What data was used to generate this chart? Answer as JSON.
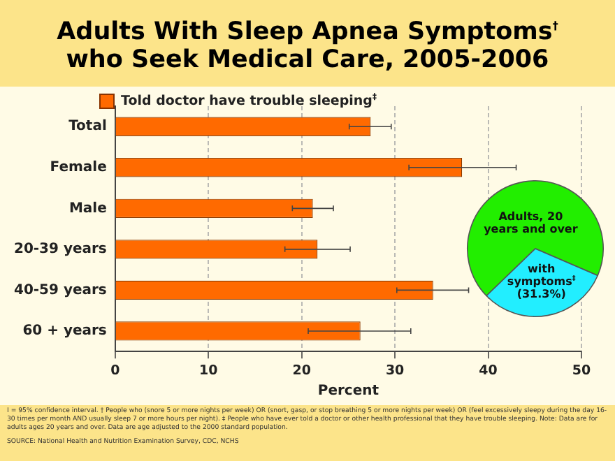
{
  "chart_data": [
    {
      "type": "bar",
      "orientation": "horizontal",
      "title": "Adults With Sleep Apnea Symptoms$^{†}$ who Seek Medical Care, 2005-2006",
      "xlabel": "Percent",
      "categories": [
        "Total",
        "Female",
        "Male",
        "20-39 years",
        "40-59 years",
        "60 + years"
      ],
      "series": [
        {
          "name": "Told doctor have trouble sleeping$^{‡}$",
          "color": "#ff6a00",
          "values": [
            27.4,
            37.2,
            21.2,
            21.7,
            34.1,
            26.3
          ],
          "errors": [
            [
              25.1,
              29.6
            ],
            [
              31.5,
              43.0
            ],
            [
              19.0,
              23.4
            ],
            [
              18.2,
              25.2
            ],
            [
              30.2,
              37.9
            ],
            [
              20.7,
              31.7
            ]
          ]
        }
      ],
      "xlim": [
        0,
        50
      ],
      "xticks": [
        0,
        10,
        20,
        30,
        40,
        50
      ],
      "grid": "x",
      "legend": "top",
      "annotations": [
        "I = 95% confidence interval. † People who (snore 5 or more nights per week) OR (snort, gasp, or stop breathing 5 or more nights per week) OR (feel excessively sleepy during the day 16-30 times per month AND usually sleep 7 or more hours per night). ‡ People who have ever told a doctor or other health professional that they have trouble sleeping. Note:  Data are for adults ages 20 years and over.  Data are age adjusted to the 2000 standard population.",
        "SOURCE:  National Health and Nutrition Examination Survey, CDC, NCHS"
      ]
    },
    {
      "type": "pie",
      "categories": [
        "Adults, 20 years and over",
        "with symptoms$^{‡}$"
      ],
      "values": [
        68.7,
        31.3
      ],
      "colors": [
        "#22ee00",
        "#22eeff"
      ],
      "value_labels": [
        null,
        "(31.3%)"
      ]
    }
  ]
}
